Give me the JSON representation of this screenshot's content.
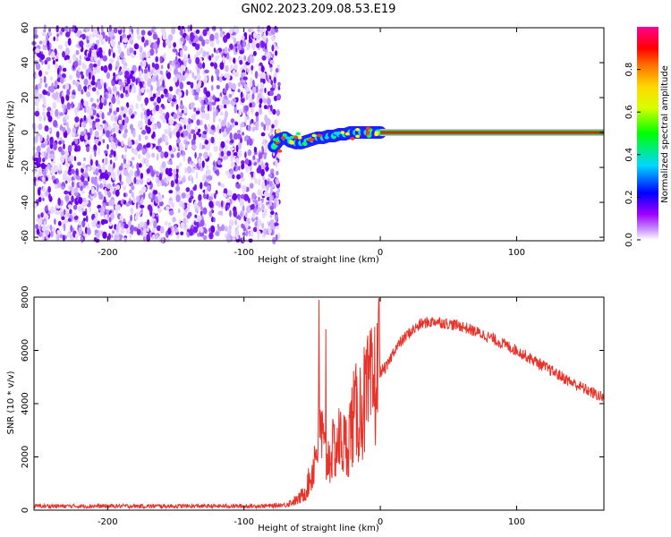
{
  "title": "GN02.2023.209.08.53.E19",
  "chart_data": [
    {
      "type": "heatmap",
      "xlabel": "Height of straight line (km)",
      "ylabel": "Frequency (Hz)",
      "xlim": [
        -254,
        164
      ],
      "ylim": [
        -62,
        60
      ],
      "xticks": [
        -200,
        -100,
        0,
        100
      ],
      "yticks": [
        -60,
        -40,
        -20,
        0,
        20,
        40,
        60
      ],
      "noise_region_x": [
        -254,
        -78
      ],
      "signal": {
        "trace_x": [
          -78,
          -74,
          -70,
          -66,
          -62,
          -58,
          -54,
          -50,
          -46,
          -42,
          -38,
          -34,
          -30,
          -26,
          -22,
          -18,
          -14,
          -10,
          -6,
          -2,
          0,
          164
        ],
        "trace_y": [
          -8,
          -4,
          -3,
          -5,
          -6,
          -6,
          -5,
          -4,
          -3,
          -3,
          -2,
          -2,
          -1,
          -1,
          0,
          0,
          0,
          0,
          0,
          0,
          0,
          0
        ],
        "frequency_hz": 0
      },
      "grid": false,
      "colorbar": {
        "label": "Normalized spectral amplitude",
        "range": [
          0,
          1
        ],
        "ticks": [
          "0.0",
          "0.2",
          "0.4",
          "0.6",
          "0.8"
        ],
        "colors": [
          "#ffffff",
          "#a000ff",
          "#0000ff",
          "#00d8ff",
          "#00ff00",
          "#ffff00",
          "#ff8000",
          "#ff0000",
          "#ff0090"
        ]
      }
    },
    {
      "type": "line",
      "xlabel": "Height of straight line (km)",
      "ylabel": "SNR (10 * v/v)",
      "xlim": [
        -254,
        164
      ],
      "ylim": [
        0,
        8000
      ],
      "xticks": [
        -200,
        -100,
        0,
        100
      ],
      "yticks": [
        0,
        2000,
        4000,
        6000,
        8000
      ],
      "grid": false,
      "series": [
        {
          "color": "#e8332a",
          "x": [
            -254,
            -200,
            -150,
            -100,
            -80,
            -70,
            -60,
            -55,
            -50,
            -46,
            -44,
            -40,
            -35,
            -30,
            -25,
            -20,
            -15,
            -10,
            -5,
            0,
            5,
            10,
            20,
            30,
            40,
            50,
            60,
            80,
            100,
            120,
            140,
            164
          ],
          "y": [
            150,
            150,
            150,
            150,
            160,
            200,
            400,
            700,
            1400,
            2600,
            3200,
            1800,
            2200,
            2600,
            2400,
            3400,
            3800,
            4200,
            4600,
            5200,
            5400,
            6000,
            6600,
            7000,
            7100,
            7000,
            6900,
            6500,
            6000,
            5400,
            4800,
            4200
          ]
        }
      ],
      "spikes": [
        {
          "x": -45,
          "y": 7900
        },
        {
          "x": -40,
          "y": 6800
        },
        {
          "x": -1,
          "y": 7950
        }
      ]
    }
  ]
}
